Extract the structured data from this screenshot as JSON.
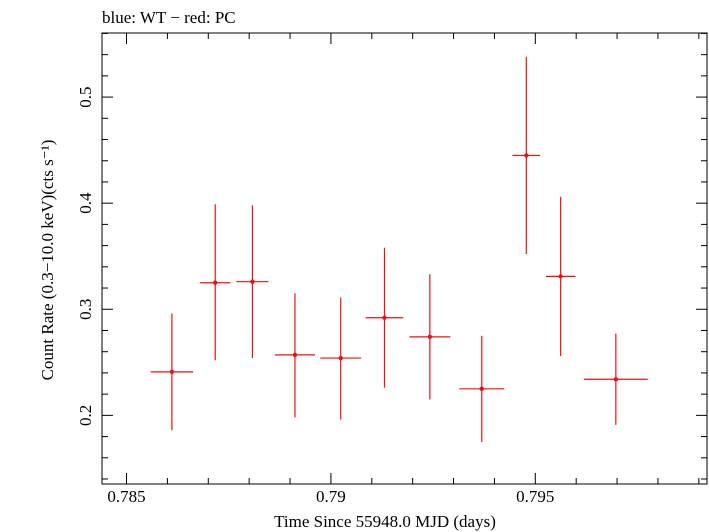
{
  "chart_data": {
    "type": "scatter",
    "title": "blue: WT − red: PC",
    "xlabel": "Time Since 55948.0 MJD (days)",
    "ylabel": "Count Rate (0.3−10.0 keV)(cts s⁻¹)",
    "xlim": [
      0.7844,
      0.7992
    ],
    "ylim": [
      0.1353,
      0.5604
    ],
    "x_ticks": [
      0.785,
      0.79,
      0.795
    ],
    "x_tick_labels": [
      "0.785",
      "0.79",
      "0.795"
    ],
    "y_ticks": [
      0.2,
      0.3,
      0.4,
      0.5
    ],
    "y_tick_labels": [
      "0.2",
      "0.3",
      "0.4",
      "0.5"
    ],
    "grid": false,
    "series": [
      {
        "color": "#ee1111",
        "points": [
          {
            "x": 0.78611,
            "y": 0.241,
            "xerr": 0.00052,
            "yerr_low": 0.055,
            "yerr_high": 0.055
          },
          {
            "x": 0.78717,
            "y": 0.325,
            "xerr": 0.00037,
            "yerr_low": 0.073,
            "yerr_high": 0.074
          },
          {
            "x": 0.78808,
            "y": 0.326,
            "xerr": 0.00039,
            "yerr_low": 0.072,
            "yerr_high": 0.072
          },
          {
            "x": 0.78912,
            "y": 0.257,
            "xerr": 0.00049,
            "yerr_low": 0.059,
            "yerr_high": 0.058
          },
          {
            "x": 0.79024,
            "y": 0.254,
            "xerr": 0.0005,
            "yerr_low": 0.058,
            "yerr_high": 0.057
          },
          {
            "x": 0.79131,
            "y": 0.292,
            "xerr": 0.00046,
            "yerr_low": 0.066,
            "yerr_high": 0.066
          },
          {
            "x": 0.79242,
            "y": 0.274,
            "xerr": 0.0005,
            "yerr_low": 0.059,
            "yerr_high": 0.059
          },
          {
            "x": 0.79369,
            "y": 0.225,
            "xerr": 0.00055,
            "yerr_low": 0.05,
            "yerr_high": 0.05
          },
          {
            "x": 0.79478,
            "y": 0.445,
            "xerr": 0.00034,
            "yerr_low": 0.093,
            "yerr_high": 0.093
          },
          {
            "x": 0.79562,
            "y": 0.331,
            "xerr": 0.00036,
            "yerr_low": 0.075,
            "yerr_high": 0.075
          },
          {
            "x": 0.79697,
            "y": 0.234,
            "xerr": 0.00078,
            "yerr_low": 0.043,
            "yerr_high": 0.043
          }
        ]
      }
    ]
  }
}
